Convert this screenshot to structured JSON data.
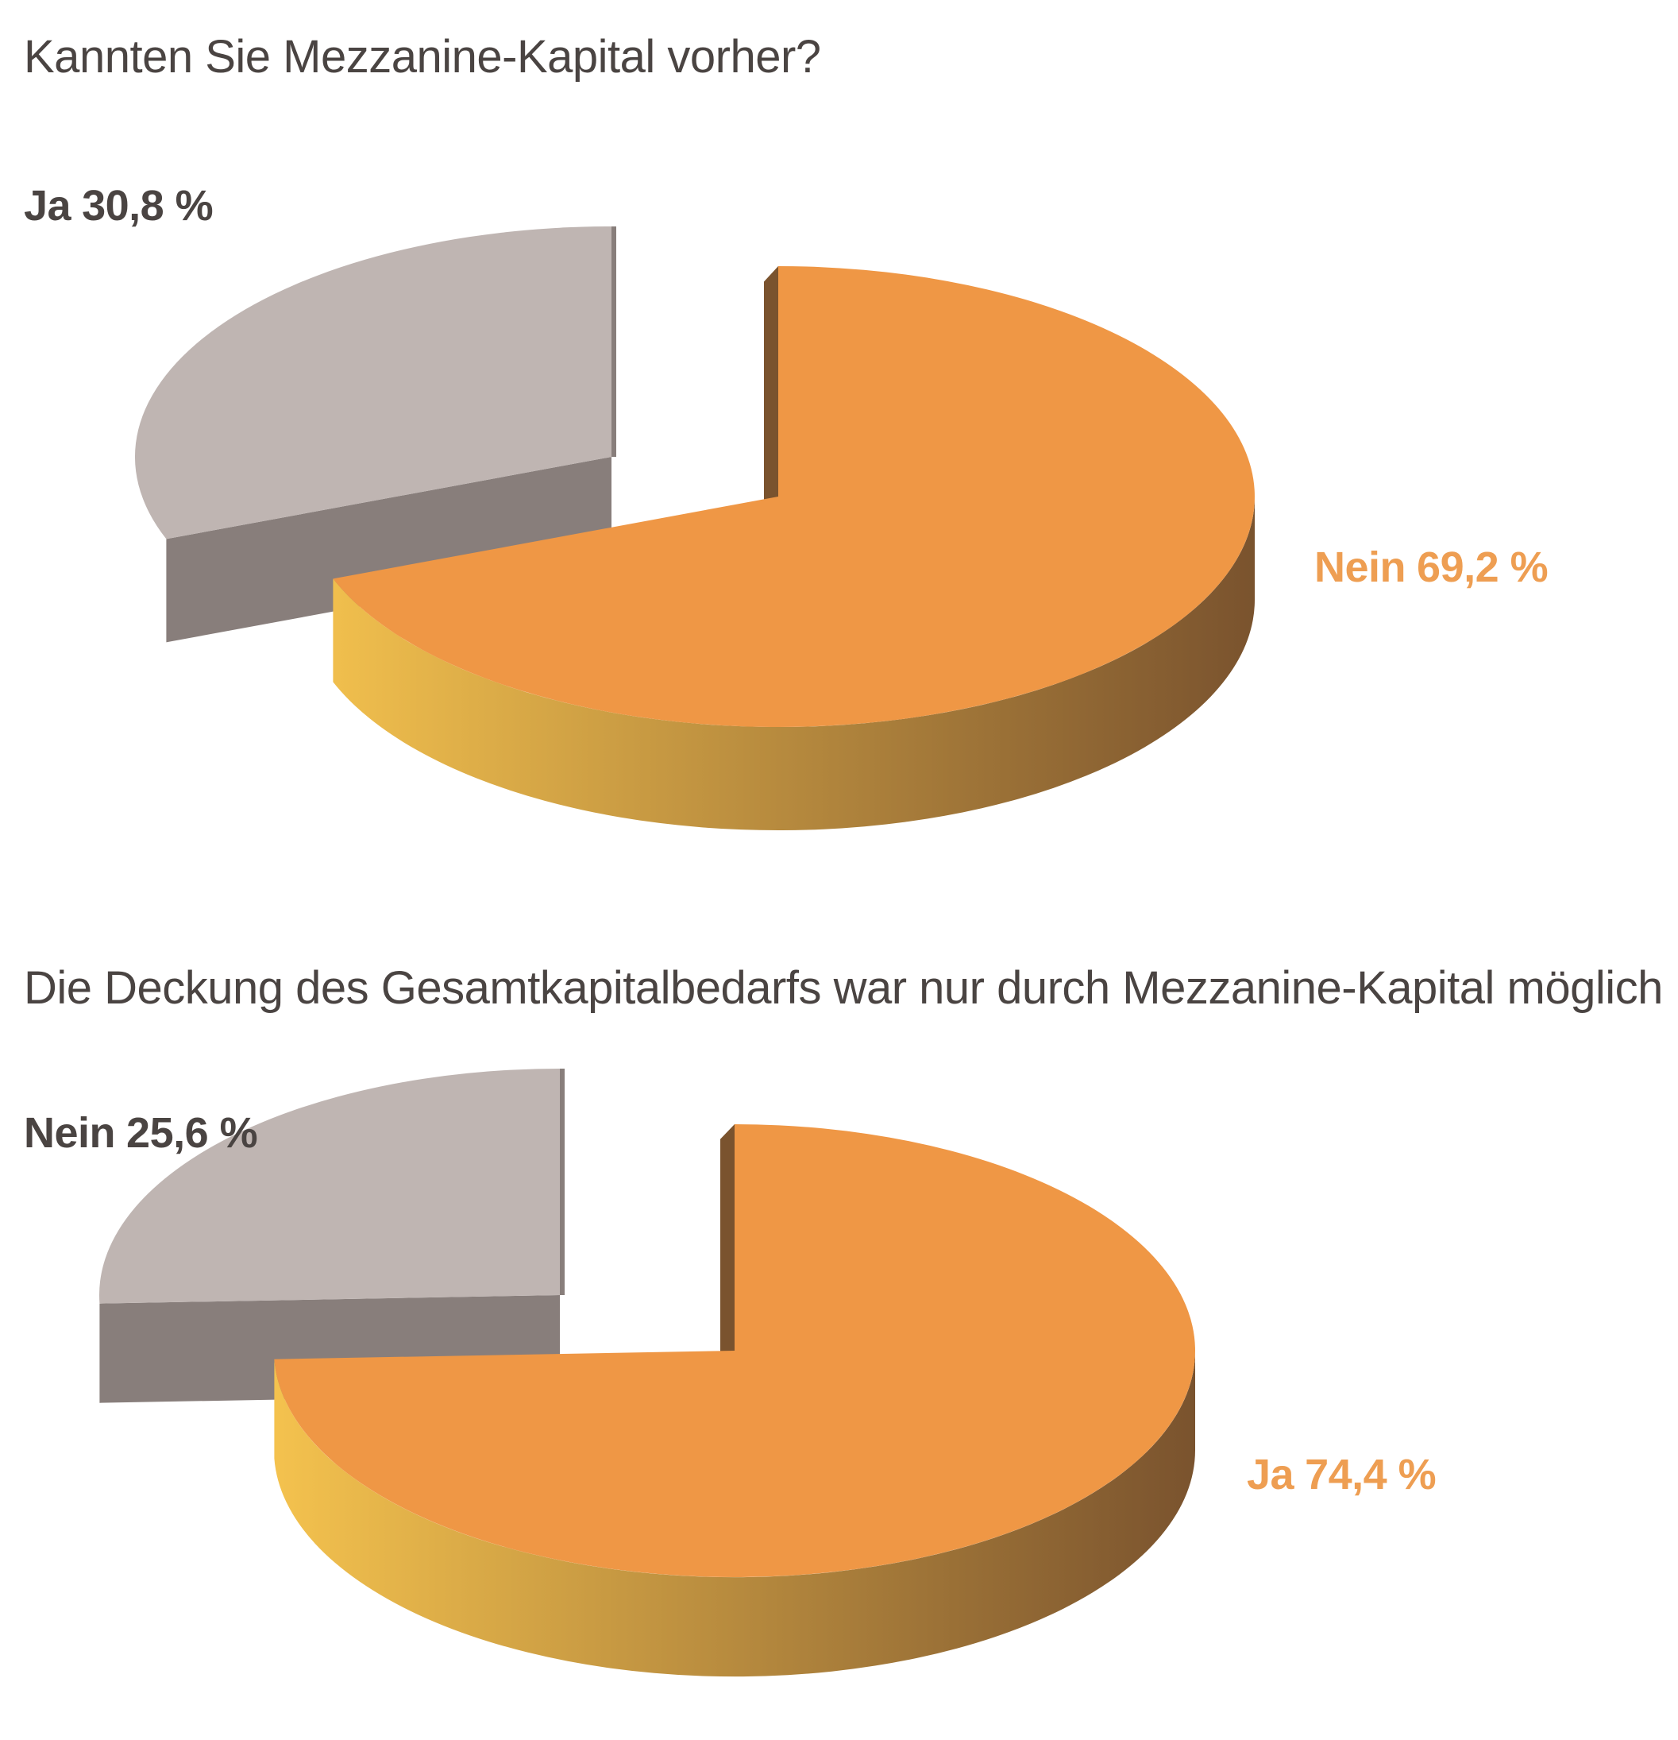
{
  "colors": {
    "major_top": "#ef9745",
    "major_side_light": "#f4c24e",
    "major_side_dark": "#7a532e",
    "minor_top": "#bfb5b2",
    "minor_side": "#887e7b",
    "title_text": "#4a4442",
    "minor_label_text": "#4a4442",
    "major_label_text": "#ee9e52"
  },
  "chart_data": [
    {
      "type": "pie",
      "title": "Kannten Sie Mezzanine-Kapital vorher?",
      "slices": [
        {
          "label": "Ja",
          "value": 30.8,
          "value_label": "30,8 %",
          "color": "#bfb5b2",
          "exploded": true
        },
        {
          "label": "Nein",
          "value": 69.2,
          "value_label": "69,2 %",
          "color": "#ef9745",
          "exploded": false
        }
      ],
      "legend": "none"
    },
    {
      "type": "pie",
      "title": "Die Deckung des Gesamtkapitalbedarfs war nur durch Mezzanine-Kapital möglich",
      "slices": [
        {
          "label": "Nein",
          "value": 25.6,
          "value_label": "25,6 %",
          "color": "#bfb5b2",
          "exploded": true
        },
        {
          "label": "Ja",
          "value": 74.4,
          "value_label": "74,4 %",
          "color": "#ef9745",
          "exploded": false
        }
      ],
      "legend": "none"
    }
  ]
}
